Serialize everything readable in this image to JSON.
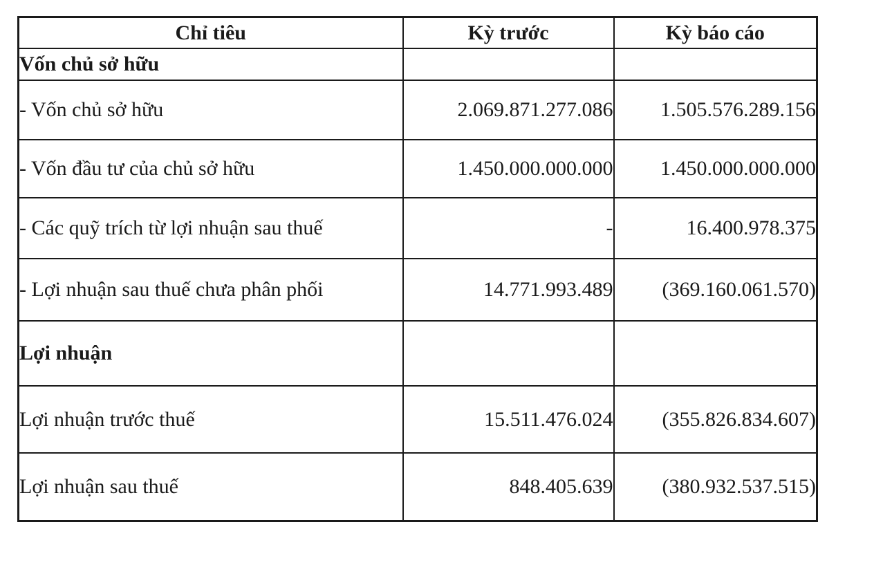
{
  "colors": {
    "ink": "#1a1a1a",
    "paper": "#ffffff"
  },
  "table": {
    "columns": [
      {
        "label": "Chỉ tiêu"
      },
      {
        "label": "Kỳ trước"
      },
      {
        "label": "Kỳ báo cáo"
      }
    ],
    "rows": [
      {
        "label": "Vốn chủ sở hữu",
        "bold": true,
        "prev": "",
        "current": ""
      },
      {
        "label": "- Vốn chủ sở hữu",
        "bold": false,
        "prev": "2.069.871.277.086",
        "current": "1.505.576.289.156"
      },
      {
        "label": "- Vốn đầu tư của chủ sở hữu",
        "bold": false,
        "prev": "1.450.000.000.000",
        "current": "1.450.000.000.000"
      },
      {
        "label": "- Các quỹ trích từ lợi nhuận sau thuế",
        "bold": false,
        "prev": "-",
        "current": "16.400.978.375"
      },
      {
        "label": "- Lợi nhuận sau thuế chưa phân phối",
        "bold": false,
        "prev": "14.771.993.489",
        "current": "(369.160.061.570)"
      },
      {
        "label": "Lợi nhuận",
        "bold": true,
        "prev": "",
        "current": ""
      },
      {
        "label": "Lợi nhuận trước thuế",
        "bold": false,
        "prev": "15.511.476.024",
        "current": "(355.826.834.607)"
      },
      {
        "label": "Lợi nhuận sau thuế",
        "bold": false,
        "prev": "848.405.639",
        "current": "(380.932.537.515)"
      }
    ]
  }
}
